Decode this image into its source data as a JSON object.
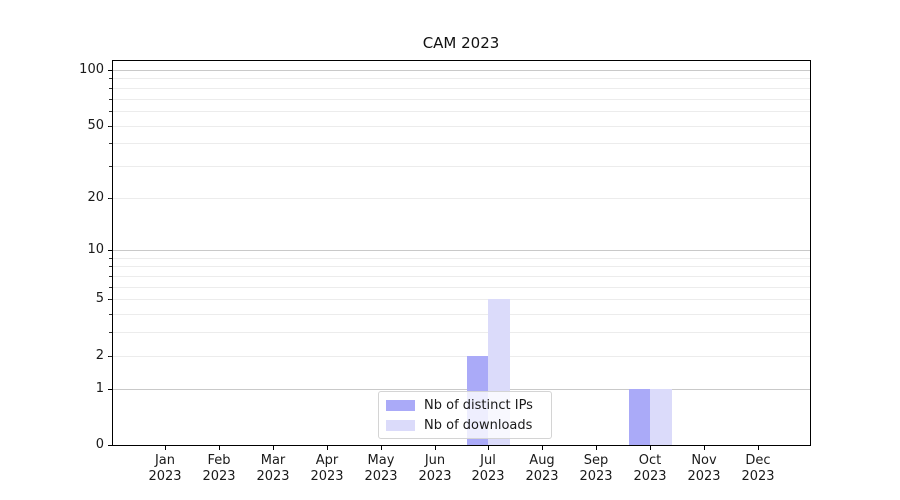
{
  "title": "CAM 2023",
  "chart_data": {
    "type": "bar",
    "title": "CAM 2023",
    "months": [
      "Jan",
      "Feb",
      "Mar",
      "Apr",
      "May",
      "Jun",
      "Jul",
      "Aug",
      "Sep",
      "Oct",
      "Nov",
      "Dec"
    ],
    "year": "2023",
    "series": [
      {
        "name": "Nb of distinct IPs",
        "color": "#aaaaf8",
        "values": [
          0,
          0,
          0,
          0,
          0,
          0,
          2,
          0,
          0,
          1,
          0,
          0
        ]
      },
      {
        "name": "Nb of downloads",
        "color": "#dbdbfa",
        "values": [
          0,
          0,
          0,
          0,
          0,
          0,
          5,
          0,
          0,
          1,
          0,
          0
        ]
      }
    ],
    "scale": "log1p",
    "ylim": [
      0,
      113.2
    ],
    "yticks_labeled": [
      0,
      1,
      2,
      5,
      10,
      20,
      50,
      100
    ],
    "grid_major": [
      1,
      10,
      100
    ],
    "grid_minor": [
      2,
      3,
      4,
      5,
      6,
      7,
      8,
      9,
      20,
      30,
      40,
      50,
      60,
      70,
      80,
      90
    ],
    "grid": "horizontal",
    "legend_position": "lower center",
    "xlabel": "",
    "ylabel": ""
  }
}
